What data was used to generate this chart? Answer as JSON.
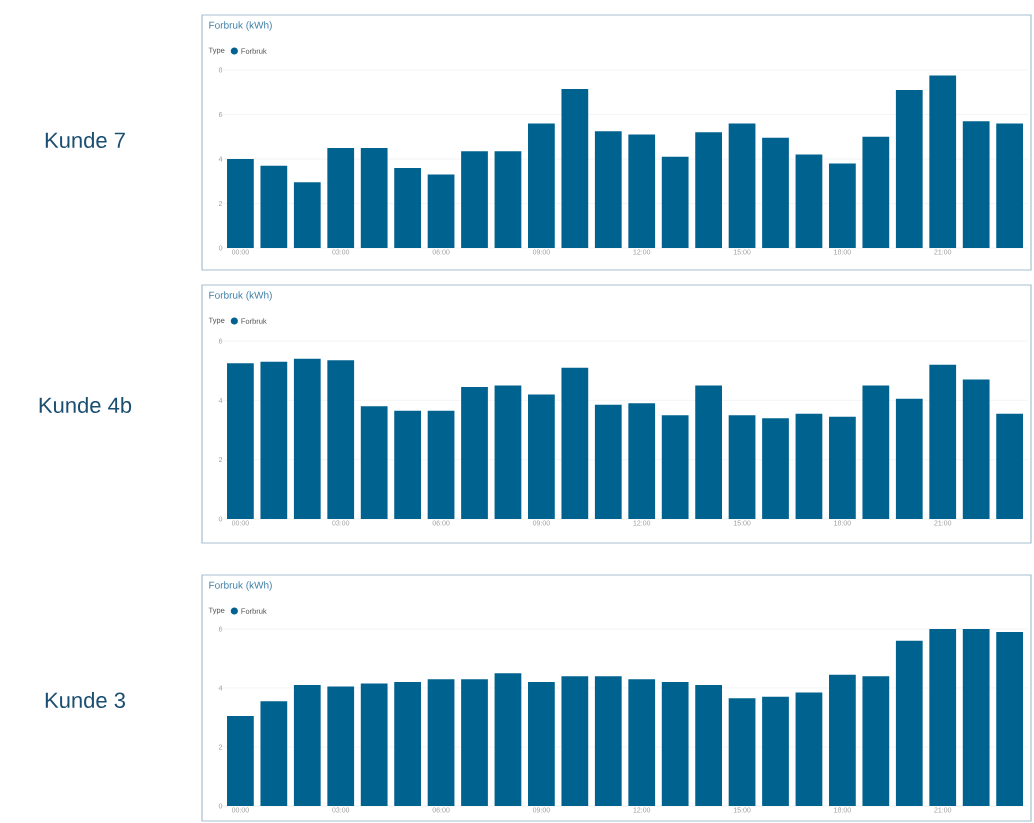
{
  "chart_data": [
    {
      "type": "bar",
      "title": "Forbruk (kWh)",
      "subtitle": "Kunde 7",
      "legend_title": "Type",
      "legend": "top left",
      "grid": "y",
      "categories": [
        "00:00",
        null,
        null,
        "03:00",
        null,
        null,
        "06:00",
        null,
        null,
        "09:00",
        null,
        null,
        "12:00",
        null,
        null,
        "15:00",
        null,
        null,
        "18:00",
        null,
        null,
        "21:00",
        null,
        null
      ],
      "series": [
        {
          "name": "Forbruk",
          "color": "#00628f",
          "values": [
            4.0,
            3.7,
            2.95,
            4.5,
            4.5,
            3.6,
            3.3,
            4.35,
            4.35,
            5.6,
            7.15,
            5.25,
            5.1,
            4.1,
            5.2,
            5.6,
            4.95,
            4.2,
            3.8,
            5.0,
            7.1,
            7.75,
            5.7,
            5.6
          ]
        }
      ],
      "ylim": [
        0,
        8
      ],
      "yticks": [
        0,
        2,
        4,
        6,
        8
      ]
    },
    {
      "type": "bar",
      "title": "Forbruk (kWh)",
      "subtitle": "Kunde 4b",
      "legend_title": "Type",
      "legend": "top left",
      "grid": "y",
      "categories": [
        "00:00",
        null,
        null,
        "03:00",
        null,
        null,
        "06:00",
        null,
        null,
        "09:00",
        null,
        null,
        "12:00",
        null,
        null,
        "15:00",
        null,
        null,
        "18:00",
        null,
        null,
        "21:00",
        null,
        null
      ],
      "series": [
        {
          "name": "Forbruk",
          "color": "#00628f",
          "values": [
            5.25,
            5.3,
            5.4,
            5.35,
            3.8,
            3.65,
            3.65,
            4.45,
            4.5,
            4.2,
            5.1,
            3.85,
            3.9,
            3.5,
            4.5,
            3.5,
            3.4,
            3.55,
            3.45,
            4.5,
            4.05,
            5.2,
            4.7,
            3.55
          ]
        }
      ],
      "ylim": [
        0,
        6
      ],
      "yticks": [
        0,
        2,
        4,
        6
      ]
    },
    {
      "type": "bar",
      "title": "Forbruk (kWh)",
      "subtitle": "Kunde 3",
      "legend_title": "Type",
      "legend": "top left",
      "grid": "y",
      "categories": [
        "00:00",
        null,
        null,
        "03:00",
        null,
        null,
        "06:00",
        null,
        null,
        "09:00",
        null,
        null,
        "12:00",
        null,
        null,
        "15:00",
        null,
        null,
        "18:00",
        null,
        null,
        "21:00",
        null,
        null
      ],
      "series": [
        {
          "name": "Forbruk",
          "color": "#00628f",
          "values": [
            3.05,
            3.55,
            4.1,
            4.05,
            4.15,
            4.2,
            4.3,
            4.3,
            4.5,
            4.2,
            4.4,
            4.4,
            4.3,
            4.2,
            4.1,
            3.65,
            3.7,
            3.85,
            4.45,
            4.4,
            5.6,
            6.0,
            6.0,
            5.9
          ]
        }
      ],
      "ylim": [
        0,
        6
      ],
      "yticks": [
        0,
        2,
        4,
        6
      ]
    }
  ]
}
